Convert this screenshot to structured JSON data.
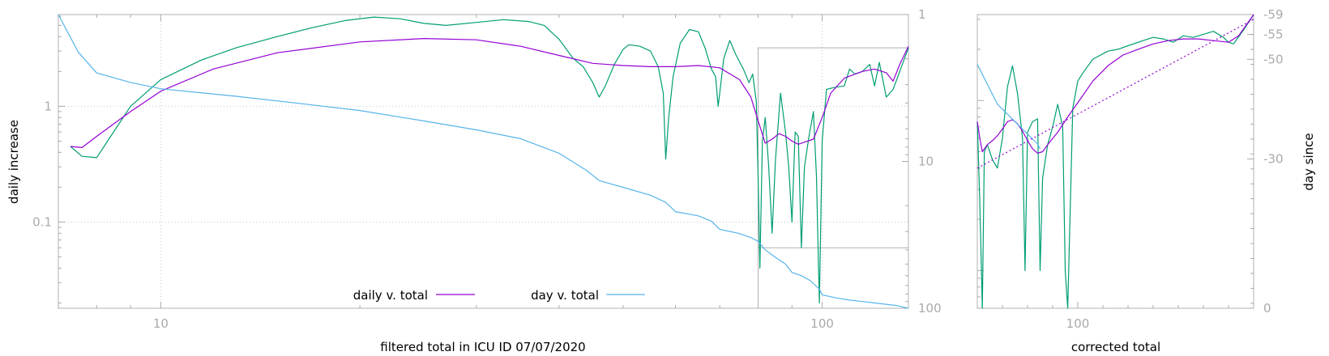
{
  "colors": {
    "daily": "#9400d3",
    "day": "#56b4e9",
    "raw": "#009e73",
    "axis": "#aaaaaa",
    "trend": "#9400d3"
  },
  "chart_data": [
    {
      "type": "line",
      "xlabel": "filtered total in ICU ID 07/07/2020",
      "ylabel": "daily increase",
      "y2label": "",
      "xscale": "log",
      "yscale": "log",
      "y2scale": "log",
      "y2reversed": true,
      "xlim": [
        7,
        135
      ],
      "ylim": [
        0.018,
        6.2
      ],
      "y2lim": [
        1,
        100
      ],
      "grid": true,
      "legend_position": "bottom-center",
      "x_ticks": [
        "10",
        "100"
      ],
      "y_ticks": [
        "0.1",
        "1"
      ],
      "y2_ticks": [
        "1",
        "10",
        "100"
      ],
      "series": [
        {
          "name": "",
          "key": "raw",
          "axis": "y",
          "points": [
            [
              7.3,
              0.45
            ],
            [
              7.6,
              0.37
            ],
            [
              8.0,
              0.36
            ],
            [
              8.4,
              0.55
            ],
            [
              9.0,
              1.0
            ],
            [
              10.0,
              1.7
            ],
            [
              11.5,
              2.5
            ],
            [
              13.0,
              3.2
            ],
            [
              15.0,
              4.0
            ],
            [
              17.0,
              4.8
            ],
            [
              19.0,
              5.5
            ],
            [
              21.0,
              5.9
            ],
            [
              23.0,
              5.7
            ],
            [
              25.0,
              5.2
            ],
            [
              27.0,
              5.0
            ],
            [
              30.0,
              5.3
            ],
            [
              33.0,
              5.6
            ],
            [
              36.0,
              5.4
            ],
            [
              38.0,
              5.0
            ],
            [
              40.0,
              3.8
            ],
            [
              42.0,
              2.6
            ],
            [
              43.5,
              2.2
            ],
            [
              45.0,
              1.6
            ],
            [
              46.0,
              1.2
            ],
            [
              47.0,
              1.5
            ],
            [
              48.5,
              2.3
            ],
            [
              50.0,
              3.1
            ],
            [
              51.0,
              3.4
            ],
            [
              53.0,
              3.3
            ],
            [
              55.0,
              3.0
            ],
            [
              56.5,
              2.2
            ],
            [
              57.5,
              1.3
            ],
            [
              58.0,
              0.35
            ],
            [
              58.6,
              0.8
            ],
            [
              59.5,
              1.8
            ],
            [
              61.0,
              3.5
            ],
            [
              63.0,
              4.6
            ],
            [
              65.0,
              4.4
            ],
            [
              66.5,
              3.2
            ],
            [
              68.0,
              2.1
            ],
            [
              69.0,
              1.8
            ],
            [
              69.6,
              1.0
            ],
            [
              70.2,
              1.5
            ],
            [
              71.0,
              2.6
            ],
            [
              72.5,
              3.7
            ],
            [
              74.0,
              2.8
            ],
            [
              76.0,
              2.1
            ],
            [
              77.5,
              1.6
            ],
            [
              78.5,
              1.9
            ],
            [
              79.5,
              1.1
            ],
            [
              80.0,
              0.25
            ],
            [
              80.5,
              0.04
            ],
            [
              81.2,
              0.5
            ],
            [
              82.0,
              0.8
            ],
            [
              83.0,
              0.3
            ],
            [
              84.0,
              0.08
            ],
            [
              85.0,
              0.35
            ],
            [
              86.5,
              1.3
            ],
            [
              88.0,
              0.6
            ],
            [
              89.0,
              0.3
            ],
            [
              90.0,
              0.1
            ],
            [
              91.0,
              0.6
            ],
            [
              92.0,
              0.55
            ],
            [
              93.0,
              0.06
            ],
            [
              94.0,
              0.3
            ],
            [
              95.5,
              0.55
            ],
            [
              97.0,
              0.9
            ],
            [
              98.0,
              0.25
            ],
            [
              99.0,
              0.02
            ],
            [
              100.0,
              0.5
            ],
            [
              101.5,
              1.4
            ],
            [
              104.0,
              1.45
            ],
            [
              108.0,
              1.5
            ],
            [
              110.0,
              2.1
            ],
            [
              112.0,
              1.9
            ],
            [
              115.0,
              2.0
            ],
            [
              118.0,
              2.3
            ],
            [
              120.0,
              1.5
            ],
            [
              122.0,
              2.4
            ],
            [
              125.0,
              1.2
            ],
            [
              128.0,
              1.4
            ],
            [
              131.0,
              2.0
            ],
            [
              135.0,
              3.2
            ]
          ]
        },
        {
          "name": "daily v. total",
          "key": "daily",
          "axis": "y",
          "points": [
            [
              7.3,
              0.45
            ],
            [
              7.6,
              0.44
            ],
            [
              8.0,
              0.55
            ],
            [
              9.0,
              0.9
            ],
            [
              10.0,
              1.35
            ],
            [
              12.0,
              2.1
            ],
            [
              15.0,
              2.9
            ],
            [
              20.0,
              3.6
            ],
            [
              25.0,
              3.85
            ],
            [
              30.0,
              3.75
            ],
            [
              35.0,
              3.3
            ],
            [
              40.0,
              2.75
            ],
            [
              45.0,
              2.35
            ],
            [
              50.0,
              2.25
            ],
            [
              55.0,
              2.2
            ],
            [
              60.0,
              2.2
            ],
            [
              65.0,
              2.25
            ],
            [
              70.0,
              2.15
            ],
            [
              75.0,
              1.7
            ],
            [
              78.0,
              1.2
            ],
            [
              80.0,
              0.75
            ],
            [
              82.0,
              0.48
            ],
            [
              84.0,
              0.52
            ],
            [
              86.0,
              0.58
            ],
            [
              88.0,
              0.55
            ],
            [
              90.0,
              0.5
            ],
            [
              92.0,
              0.47
            ],
            [
              95.0,
              0.5
            ],
            [
              97.0,
              0.52
            ],
            [
              100.0,
              0.8
            ],
            [
              103.0,
              1.3
            ],
            [
              108.0,
              1.75
            ],
            [
              115.0,
              2.0
            ],
            [
              120.0,
              2.1
            ],
            [
              125.0,
              1.95
            ],
            [
              128.0,
              1.65
            ],
            [
              131.0,
              2.3
            ],
            [
              135.0,
              3.3
            ]
          ]
        },
        {
          "name": "day v. total",
          "key": "day",
          "axis": "y2",
          "points": [
            [
              7.0,
              1.0
            ],
            [
              7.5,
              1.8
            ],
            [
              8.0,
              2.5
            ],
            [
              9.0,
              2.9
            ],
            [
              10.0,
              3.2
            ],
            [
              13.0,
              3.6
            ],
            [
              16.0,
              4.0
            ],
            [
              20.0,
              4.5
            ],
            [
              25.0,
              5.3
            ],
            [
              30.0,
              6.1
            ],
            [
              35.0,
              7.0
            ],
            [
              40.0,
              8.8
            ],
            [
              44.0,
              11.5
            ],
            [
              46.0,
              13.5
            ],
            [
              50.0,
              15.0
            ],
            [
              55.0,
              17.0
            ],
            [
              58.0,
              19.0
            ],
            [
              60.0,
              22.0
            ],
            [
              65.0,
              23.5
            ],
            [
              68.0,
              25.5
            ],
            [
              70.0,
              29.0
            ],
            [
              75.0,
              31.0
            ],
            [
              78.0,
              33.0
            ],
            [
              80.0,
              35.0
            ],
            [
              82.0,
              40.0
            ],
            [
              85.0,
              45.0
            ],
            [
              88.0,
              50.0
            ],
            [
              90.0,
              57.0
            ],
            [
              93.0,
              60.0
            ],
            [
              96.0,
              65.0
            ],
            [
              99.0,
              74.0
            ],
            [
              100.0,
              81.0
            ],
            [
              105.0,
              85.0
            ],
            [
              110.0,
              88.0
            ],
            [
              115.0,
              90.0
            ],
            [
              120.0,
              92.0
            ],
            [
              125.0,
              94.0
            ],
            [
              130.0,
              96.0
            ],
            [
              135.0,
              100.0
            ]
          ]
        }
      ],
      "inset_box": {
        "x": [
          80,
          135
        ],
        "y": [
          0.06,
          3.2
        ]
      }
    },
    {
      "type": "line",
      "xlabel": "corrected total",
      "ylabel": "",
      "y2label": "day since",
      "xlim": [
        80,
        135
      ],
      "ylim": [
        0.06,
        3.2
      ],
      "y2lim": [
        -59,
        0
      ],
      "grid": false,
      "x_ticks": [
        "100"
      ],
      "y2_ticks": [
        "-59",
        "-55",
        "-50",
        "-30",
        "0"
      ],
      "series": [
        {
          "name": "",
          "key": "raw",
          "axis": "y",
          "points": [
            [
              80,
              0.75
            ],
            [
              80.5,
              0.25
            ],
            [
              81,
              0.06
            ],
            [
              81.4,
              0.5
            ],
            [
              82,
              0.55
            ],
            [
              83,
              0.45
            ],
            [
              84,
              0.4
            ],
            [
              85,
              0.6
            ],
            [
              86,
              1.2
            ],
            [
              87,
              1.6
            ],
            [
              88,
              1.1
            ],
            [
              89,
              0.6
            ],
            [
              89.5,
              0.1
            ],
            [
              90,
              0.65
            ],
            [
              91,
              0.75
            ],
            [
              92,
              0.78
            ],
            [
              92.5,
              0.1
            ],
            [
              93,
              0.35
            ],
            [
              94,
              0.55
            ],
            [
              95,
              0.7
            ],
            [
              96,
              0.95
            ],
            [
              97,
              0.7
            ],
            [
              97.5,
              0.1
            ],
            [
              98,
              0.06
            ],
            [
              99,
              0.9
            ],
            [
              100,
              1.3
            ],
            [
              101,
              1.45
            ],
            [
              103,
              1.75
            ],
            [
              106,
              1.95
            ],
            [
              108,
              2.0
            ],
            [
              110,
              2.1
            ],
            [
              113,
              2.25
            ],
            [
              115,
              2.35
            ],
            [
              117,
              2.3
            ],
            [
              119,
              2.2
            ],
            [
              121,
              2.4
            ],
            [
              123,
              2.35
            ],
            [
              125,
              2.45
            ],
            [
              127,
              2.55
            ],
            [
              129,
              2.35
            ],
            [
              130,
              2.2
            ],
            [
              131,
              2.15
            ],
            [
              133,
              2.6
            ],
            [
              135,
              3.2
            ]
          ]
        },
        {
          "name": "",
          "key": "daily",
          "axis": "y",
          "points": [
            [
              80,
              0.75
            ],
            [
              80.5,
              0.6
            ],
            [
              81,
              0.5
            ],
            [
              82,
              0.55
            ],
            [
              83,
              0.58
            ],
            [
              84,
              0.62
            ],
            [
              85,
              0.68
            ],
            [
              86,
              0.75
            ],
            [
              87,
              0.77
            ],
            [
              88,
              0.73
            ],
            [
              89,
              0.66
            ],
            [
              90,
              0.58
            ],
            [
              91,
              0.52
            ],
            [
              92,
              0.49
            ],
            [
              93,
              0.5
            ],
            [
              94,
              0.55
            ],
            [
              96,
              0.65
            ],
            [
              98,
              0.8
            ],
            [
              100,
              0.97
            ],
            [
              103,
              1.3
            ],
            [
              106,
              1.6
            ],
            [
              109,
              1.85
            ],
            [
              112,
              2.0
            ],
            [
              115,
              2.15
            ],
            [
              118,
              2.25
            ],
            [
              121,
              2.3
            ],
            [
              124,
              2.3
            ],
            [
              127,
              2.25
            ],
            [
              130,
              2.2
            ],
            [
              132,
              2.4
            ],
            [
              135,
              3.2
            ]
          ]
        },
        {
          "name": "",
          "key": "day",
          "axis": "y2",
          "points": [
            [
              80,
              -49
            ],
            [
              80.5,
              -48
            ],
            [
              81,
              -47
            ],
            [
              81.5,
              -46
            ],
            [
              82,
              -45
            ],
            [
              83,
              -43
            ],
            [
              84,
              -41
            ],
            [
              85,
              -40
            ],
            [
              86,
              -39
            ],
            [
              87,
              -38
            ],
            [
              88,
              -37
            ],
            [
              89,
              -36
            ],
            [
              90,
              -35
            ],
            [
              91,
              -34
            ],
            [
              92,
              -33
            ],
            [
              92.5,
              -32
            ]
          ]
        },
        {
          "name": "",
          "key": "trend",
          "axis": "y",
          "dashed": true,
          "points": [
            [
              80,
              0.4
            ],
            [
              135,
              3.0
            ]
          ]
        }
      ]
    }
  ]
}
